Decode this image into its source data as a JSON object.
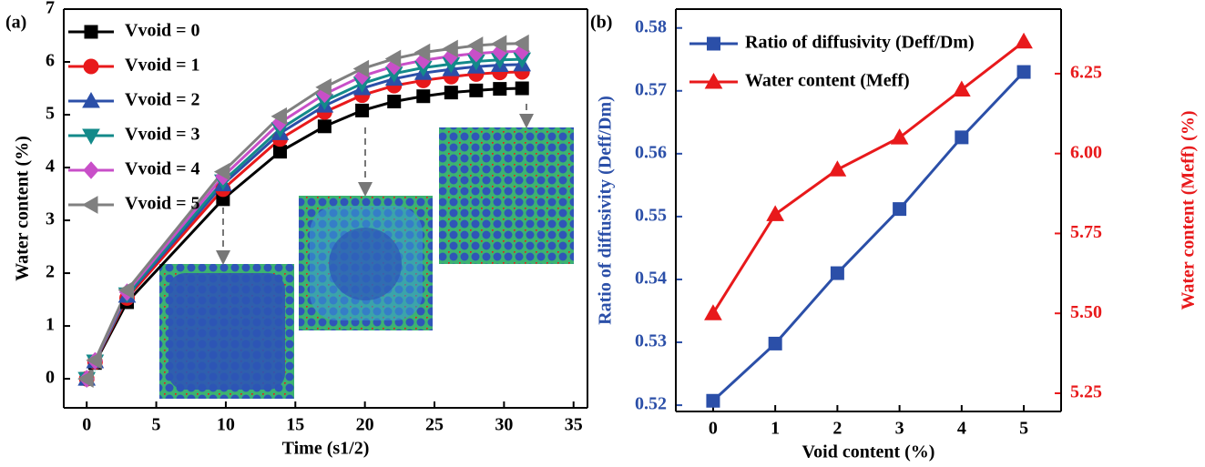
{
  "chart_data": [
    {
      "type": "line",
      "panel_label": "(a)",
      "xlabel": "Time (s1/2)",
      "ylabel": "Water content (%)",
      "x": [
        0,
        0.6,
        2.9,
        9.8,
        13.9,
        17.1,
        19.8,
        22.1,
        24.2,
        26.2,
        28.0,
        29.7,
        31.3
      ],
      "xlim": [
        -1.65,
        36
      ],
      "xticks": [
        0,
        5,
        10,
        15,
        20,
        25,
        30,
        35
      ],
      "ylim": [
        -0.55,
        7
      ],
      "yticks": [
        0,
        1,
        2,
        3,
        4,
        5,
        6,
        7
      ],
      "series": [
        {
          "name": "Vvoid = 0",
          "color": "#000000",
          "marker": "square",
          "values": [
            0,
            0.3,
            1.45,
            3.4,
            4.3,
            4.78,
            5.08,
            5.25,
            5.35,
            5.42,
            5.46,
            5.49,
            5.5
          ]
        },
        {
          "name": "Vvoid = 1",
          "color": "#e8191b",
          "marker": "circle",
          "values": [
            0,
            0.32,
            1.53,
            3.59,
            4.54,
            5.05,
            5.37,
            5.55,
            5.65,
            5.72,
            5.77,
            5.8,
            5.81
          ]
        },
        {
          "name": "Vvoid = 2",
          "color": "#2b4fa8",
          "marker": "triangle-up",
          "values": [
            0,
            0.33,
            1.57,
            3.68,
            4.65,
            5.17,
            5.5,
            5.68,
            5.79,
            5.86,
            5.91,
            5.94,
            5.95
          ]
        },
        {
          "name": "Vvoid = 3",
          "color": "#138a8a",
          "marker": "triangle-down",
          "values": [
            0,
            0.33,
            1.6,
            3.74,
            4.73,
            5.26,
            5.59,
            5.78,
            5.89,
            5.96,
            6.01,
            6.04,
            6.05
          ]
        },
        {
          "name": "Vvoid = 4",
          "color": "#c84fc8",
          "marker": "diamond",
          "values": [
            0,
            0.34,
            1.64,
            3.83,
            4.85,
            5.39,
            5.73,
            5.92,
            6.03,
            6.11,
            6.16,
            6.19,
            6.2
          ]
        },
        {
          "name": "Vvoid = 5",
          "color": "#808080",
          "marker": "triangle-left",
          "values": [
            0,
            0.35,
            1.68,
            3.92,
            4.97,
            5.52,
            5.87,
            6.06,
            6.18,
            6.25,
            6.31,
            6.34,
            6.35
          ]
        }
      ]
    },
    {
      "type": "line",
      "panel_label": "(b)",
      "xlabel": "Void content (%)",
      "ylabel": "Ratio of diffusivity (Deff/Dm)",
      "y2label": "Water content (Meff) (%)",
      "y_axis_color": "#2b4fa8",
      "y2_axis_color": "#e8191b",
      "x": [
        0,
        1,
        2,
        3,
        4,
        5
      ],
      "xlim": [
        -0.6,
        5.6
      ],
      "xticks": [
        0,
        1,
        2,
        3,
        4,
        5
      ],
      "ylim": [
        0.519,
        0.583
      ],
      "yticks": [
        0.52,
        0.53,
        0.54,
        0.55,
        0.56,
        0.57,
        0.58
      ],
      "y2lim": [
        5.193,
        6.452
      ],
      "y2ticks": [
        5.25,
        {
          "value": 5.5,
          "label": "5.50"
        },
        5.75,
        {
          "value": 6,
          "label": "6.00"
        },
        6.25
      ],
      "series": [
        {
          "name": "Ratio of diffusivity (Deff/Dm)",
          "color": "#2b4fa8",
          "marker": "square",
          "values": [
            0.5207,
            0.5298,
            0.541,
            0.5512,
            0.5626,
            0.573
          ]
        },
        {
          "name": "Water content  (Meff)",
          "color": "#e8191b",
          "marker": "triangle-up",
          "axis": "y2",
          "values": [
            5.5,
            5.81,
            5.95,
            6.05,
            6.2,
            6.35
          ]
        }
      ]
    }
  ]
}
